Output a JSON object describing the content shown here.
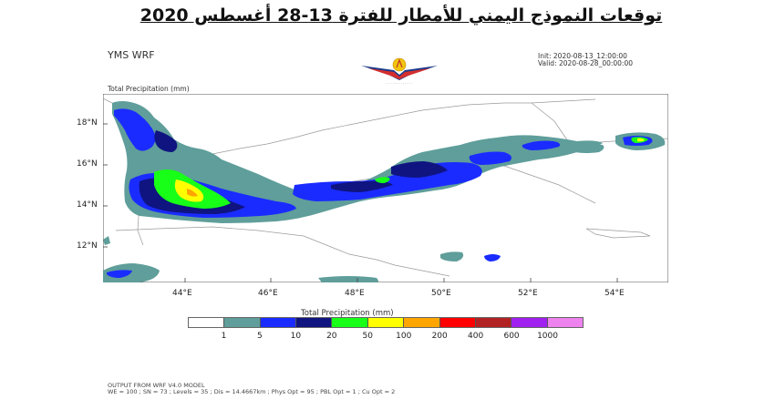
{
  "heading": "توقعات النموذج اليمني للأمطار للفترة 13-28 أغسطس 2020",
  "model": "YMS WRF",
  "run": {
    "init": "Init: 2020-08-13_12:00:00",
    "valid": "Valid: 2020-08-28_00:00:00"
  },
  "variable_label": "Total Precipitation   (mm)",
  "map": {
    "lat_labels": [
      "18°N",
      "16°N",
      "14°N",
      "12°N"
    ],
    "lon_labels": [
      "44°E",
      "46°E",
      "48°E",
      "50°E",
      "52°E",
      "54°E"
    ],
    "lat_range": [
      10.5,
      19.6
    ],
    "lon_range": [
      42.2,
      55.3
    ]
  },
  "colorbar": {
    "title": "Total Precipitation   (mm)",
    "colors": [
      "#ffffff",
      "#5f9e9a",
      "#1a2bff",
      "#0f1480",
      "#18ff18",
      "#ffff00",
      "#ffa500",
      "#ff0000",
      "#b22222",
      "#a020f0",
      "#ee82ee"
    ],
    "labels": [
      "1",
      "5",
      "10",
      "20",
      "50",
      "100",
      "200",
      "400",
      "600",
      "1000"
    ]
  },
  "footer": {
    "line1": "OUTPUT FROM WRF V4.0 MODEL",
    "line2": "WE = 100 ; SN = 73 ; Levels = 35 ; Dis = 14.4667km ; Phys Opt = 95 ; PBL Opt = 1 ; Cu Opt = 2"
  }
}
